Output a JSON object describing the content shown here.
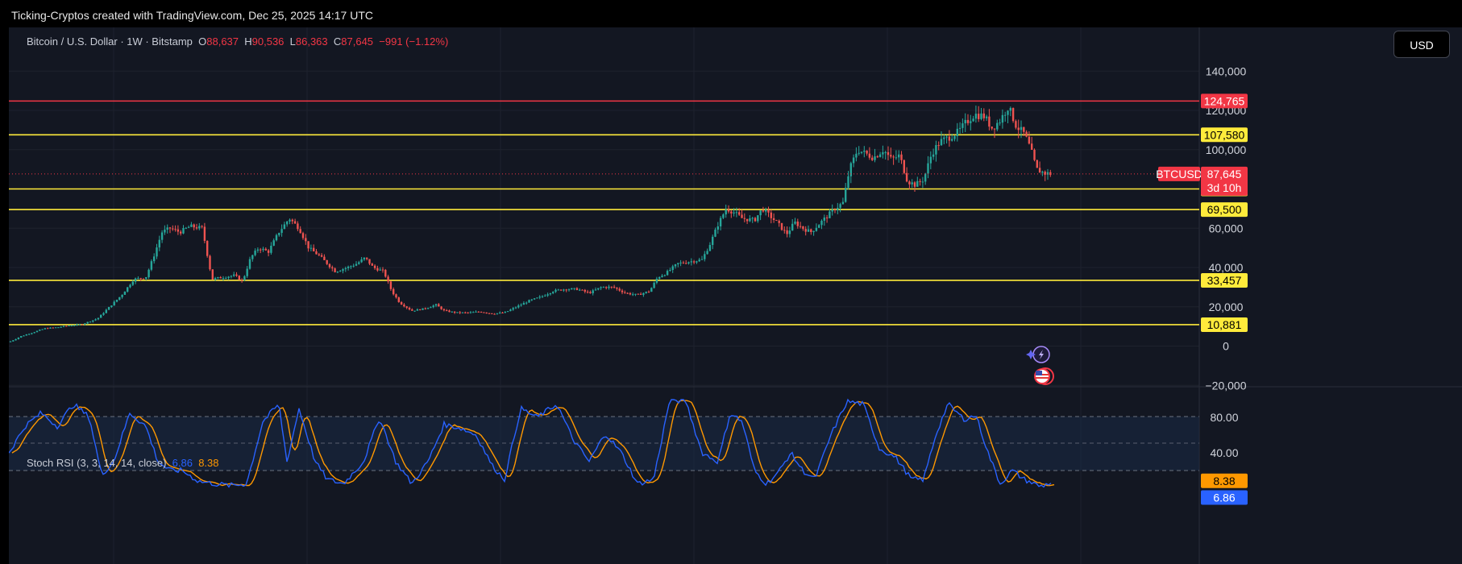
{
  "header": {
    "attribution": "Ticking-Cryptos created with TradingView.com, Dec 25, 2025 14:17 UTC"
  },
  "legend": {
    "symbol": "Bitcoin / U.S. Dollar · 1W · Bitstamp",
    "o_label": "O",
    "o_value": "88,637",
    "h_label": "H",
    "h_value": "90,536",
    "l_label": "L",
    "l_value": "86,363",
    "c_label": "C",
    "c_value": "87,645",
    "change": "−991 (−1.12%)"
  },
  "currency_button": "USD",
  "price_axis": {
    "ticks": [
      "140,000",
      "120,000",
      "100,000",
      "60,000",
      "40,000",
      "20,000",
      "0",
      "−20,000"
    ]
  },
  "levels": [
    {
      "label": "124,765",
      "value": 124765,
      "kind": "resistance",
      "color": "#f23645"
    },
    {
      "label": "107,580",
      "value": 107580,
      "kind": "level",
      "color": "#ffeb3b"
    },
    {
      "label": "80,000",
      "value": 80000,
      "kind": "level",
      "color": "#ffeb3b"
    },
    {
      "label": "69,500",
      "value": 69500,
      "kind": "level",
      "color": "#ffeb3b"
    },
    {
      "label": "33,457",
      "value": 33457,
      "kind": "level",
      "color": "#ffeb3b"
    },
    {
      "label": "10,881",
      "value": 10881,
      "kind": "level",
      "color": "#ffeb3b"
    }
  ],
  "last_price": {
    "symbol": "BTCUSD",
    "value": "87,645",
    "countdown": "3d 10h",
    "color": "#f23645"
  },
  "stoch": {
    "name": "Stoch RSI (3, 3, 14, 14, close)",
    "k": "6.86",
    "d": "8.38",
    "axis_ticks": [
      "80.00",
      "40.00"
    ],
    "k_color": "#2962ff",
    "d_color": "#ff9800"
  },
  "colors": {
    "up": "#26a69a",
    "down": "#ef5350",
    "background": "#131722"
  },
  "icons": [
    "lightning-icon",
    "us-flag-icon"
  ],
  "chart_data": {
    "type": "candlestick",
    "title": "Bitcoin / U.S. Dollar · 1W · Bitstamp",
    "ylim": [
      -20000,
      150000
    ],
    "y_scale": "linear",
    "approx_close_path": [
      [
        0,
        2000
      ],
      [
        15,
        5000
      ],
      [
        30,
        7000
      ],
      [
        45,
        9000
      ],
      [
        60,
        9500
      ],
      [
        75,
        10500
      ],
      [
        90,
        11000
      ],
      [
        110,
        14000
      ],
      [
        125,
        20000
      ],
      [
        140,
        26000
      ],
      [
        155,
        34000
      ],
      [
        170,
        35000
      ],
      [
        180,
        46000
      ],
      [
        190,
        58000
      ],
      [
        200,
        60000
      ],
      [
        212,
        58000
      ],
      [
        225,
        61000
      ],
      [
        240,
        60000
      ],
      [
        252,
        34000
      ],
      [
        265,
        35000
      ],
      [
        280,
        36000
      ],
      [
        290,
        33000
      ],
      [
        300,
        45000
      ],
      [
        310,
        50000
      ],
      [
        322,
        48000
      ],
      [
        335,
        58000
      ],
      [
        348,
        65000
      ],
      [
        360,
        60000
      ],
      [
        372,
        50000
      ],
      [
        385,
        46000
      ],
      [
        395,
        42000
      ],
      [
        405,
        38000
      ],
      [
        420,
        40000
      ],
      [
        432,
        42000
      ],
      [
        442,
        45000
      ],
      [
        452,
        40000
      ],
      [
        465,
        38000
      ],
      [
        475,
        28000
      ],
      [
        485,
        22000
      ],
      [
        500,
        18000
      ],
      [
        515,
        19000
      ],
      [
        530,
        21000
      ],
      [
        540,
        18000
      ],
      [
        555,
        17000
      ],
      [
        570,
        17000
      ],
      [
        585,
        17500
      ],
      [
        600,
        16500
      ],
      [
        615,
        17000
      ],
      [
        630,
        20000
      ],
      [
        645,
        23000
      ],
      [
        660,
        25000
      ],
      [
        675,
        28000
      ],
      [
        690,
        29000
      ],
      [
        705,
        29000
      ],
      [
        720,
        27000
      ],
      [
        735,
        30000
      ],
      [
        750,
        30000
      ],
      [
        765,
        27000
      ],
      [
        780,
        26000
      ],
      [
        795,
        28000
      ],
      [
        805,
        35000
      ],
      [
        815,
        37000
      ],
      [
        830,
        42000
      ],
      [
        845,
        43000
      ],
      [
        860,
        44000
      ],
      [
        870,
        52000
      ],
      [
        880,
        62000
      ],
      [
        890,
        70000
      ],
      [
        900,
        68000
      ],
      [
        910,
        65000
      ],
      [
        925,
        64000
      ],
      [
        935,
        70000
      ],
      [
        945,
        66000
      ],
      [
        955,
        62000
      ],
      [
        965,
        57000
      ],
      [
        975,
        63000
      ],
      [
        985,
        60000
      ],
      [
        995,
        58000
      ],
      [
        1005,
        62000
      ],
      [
        1015,
        66000
      ],
      [
        1025,
        70000
      ],
      [
        1035,
        73000
      ],
      [
        1043,
        90000
      ],
      [
        1053,
        100000
      ],
      [
        1063,
        98000
      ],
      [
        1073,
        96000
      ],
      [
        1085,
        100000
      ],
      [
        1095,
        95000
      ],
      [
        1105,
        97000
      ],
      [
        1115,
        84000
      ],
      [
        1125,
        82000
      ],
      [
        1135,
        85000
      ],
      [
        1145,
        98000
      ],
      [
        1155,
        104000
      ],
      [
        1165,
        106000
      ],
      [
        1178,
        109000
      ],
      [
        1188,
        114000
      ],
      [
        1198,
        118000
      ],
      [
        1210,
        117000
      ],
      [
        1220,
        111000
      ],
      [
        1230,
        115000
      ],
      [
        1240,
        122000
      ],
      [
        1250,
        112000
      ],
      [
        1260,
        108000
      ],
      [
        1268,
        100000
      ],
      [
        1275,
        90000
      ],
      [
        1285,
        88000
      ],
      [
        1295,
        87645
      ]
    ],
    "stoch_k_path": [
      [
        0,
        40
      ],
      [
        20,
        70
      ],
      [
        40,
        85
      ],
      [
        60,
        70
      ],
      [
        80,
        95
      ],
      [
        100,
        80
      ],
      [
        115,
        15
      ],
      [
        130,
        30
      ],
      [
        150,
        85
      ],
      [
        170,
        70
      ],
      [
        185,
        30
      ],
      [
        200,
        20
      ],
      [
        215,
        20
      ],
      [
        235,
        8
      ],
      [
        255,
        5
      ],
      [
        275,
        3
      ],
      [
        295,
        5
      ],
      [
        315,
        75
      ],
      [
        335,
        95
      ],
      [
        345,
        30
      ],
      [
        360,
        90
      ],
      [
        380,
        30
      ],
      [
        395,
        10
      ],
      [
        415,
        5
      ],
      [
        440,
        30
      ],
      [
        460,
        80
      ],
      [
        480,
        30
      ],
      [
        500,
        5
      ],
      [
        520,
        30
      ],
      [
        540,
        72
      ],
      [
        560,
        68
      ],
      [
        580,
        60
      ],
      [
        600,
        25
      ],
      [
        615,
        10
      ],
      [
        635,
        90
      ],
      [
        655,
        80
      ],
      [
        680,
        95
      ],
      [
        700,
        55
      ],
      [
        720,
        30
      ],
      [
        740,
        62
      ],
      [
        760,
        40
      ],
      [
        780,
        5
      ],
      [
        800,
        10
      ],
      [
        820,
        100
      ],
      [
        840,
        98
      ],
      [
        860,
        40
      ],
      [
        880,
        30
      ],
      [
        895,
        85
      ],
      [
        910,
        75
      ],
      [
        925,
        20
      ],
      [
        940,
        5
      ],
      [
        955,
        18
      ],
      [
        970,
        40
      ],
      [
        985,
        20
      ],
      [
        1000,
        10
      ],
      [
        1020,
        60
      ],
      [
        1040,
        98
      ],
      [
        1060,
        95
      ],
      [
        1080,
        45
      ],
      [
        1100,
        35
      ],
      [
        1120,
        10
      ],
      [
        1135,
        10
      ],
      [
        1150,
        60
      ],
      [
        1165,
        95
      ],
      [
        1185,
        78
      ],
      [
        1200,
        82
      ],
      [
        1215,
        40
      ],
      [
        1230,
        5
      ],
      [
        1245,
        20
      ],
      [
        1260,
        10
      ],
      [
        1280,
        2
      ],
      [
        1295,
        6.86
      ]
    ]
  }
}
